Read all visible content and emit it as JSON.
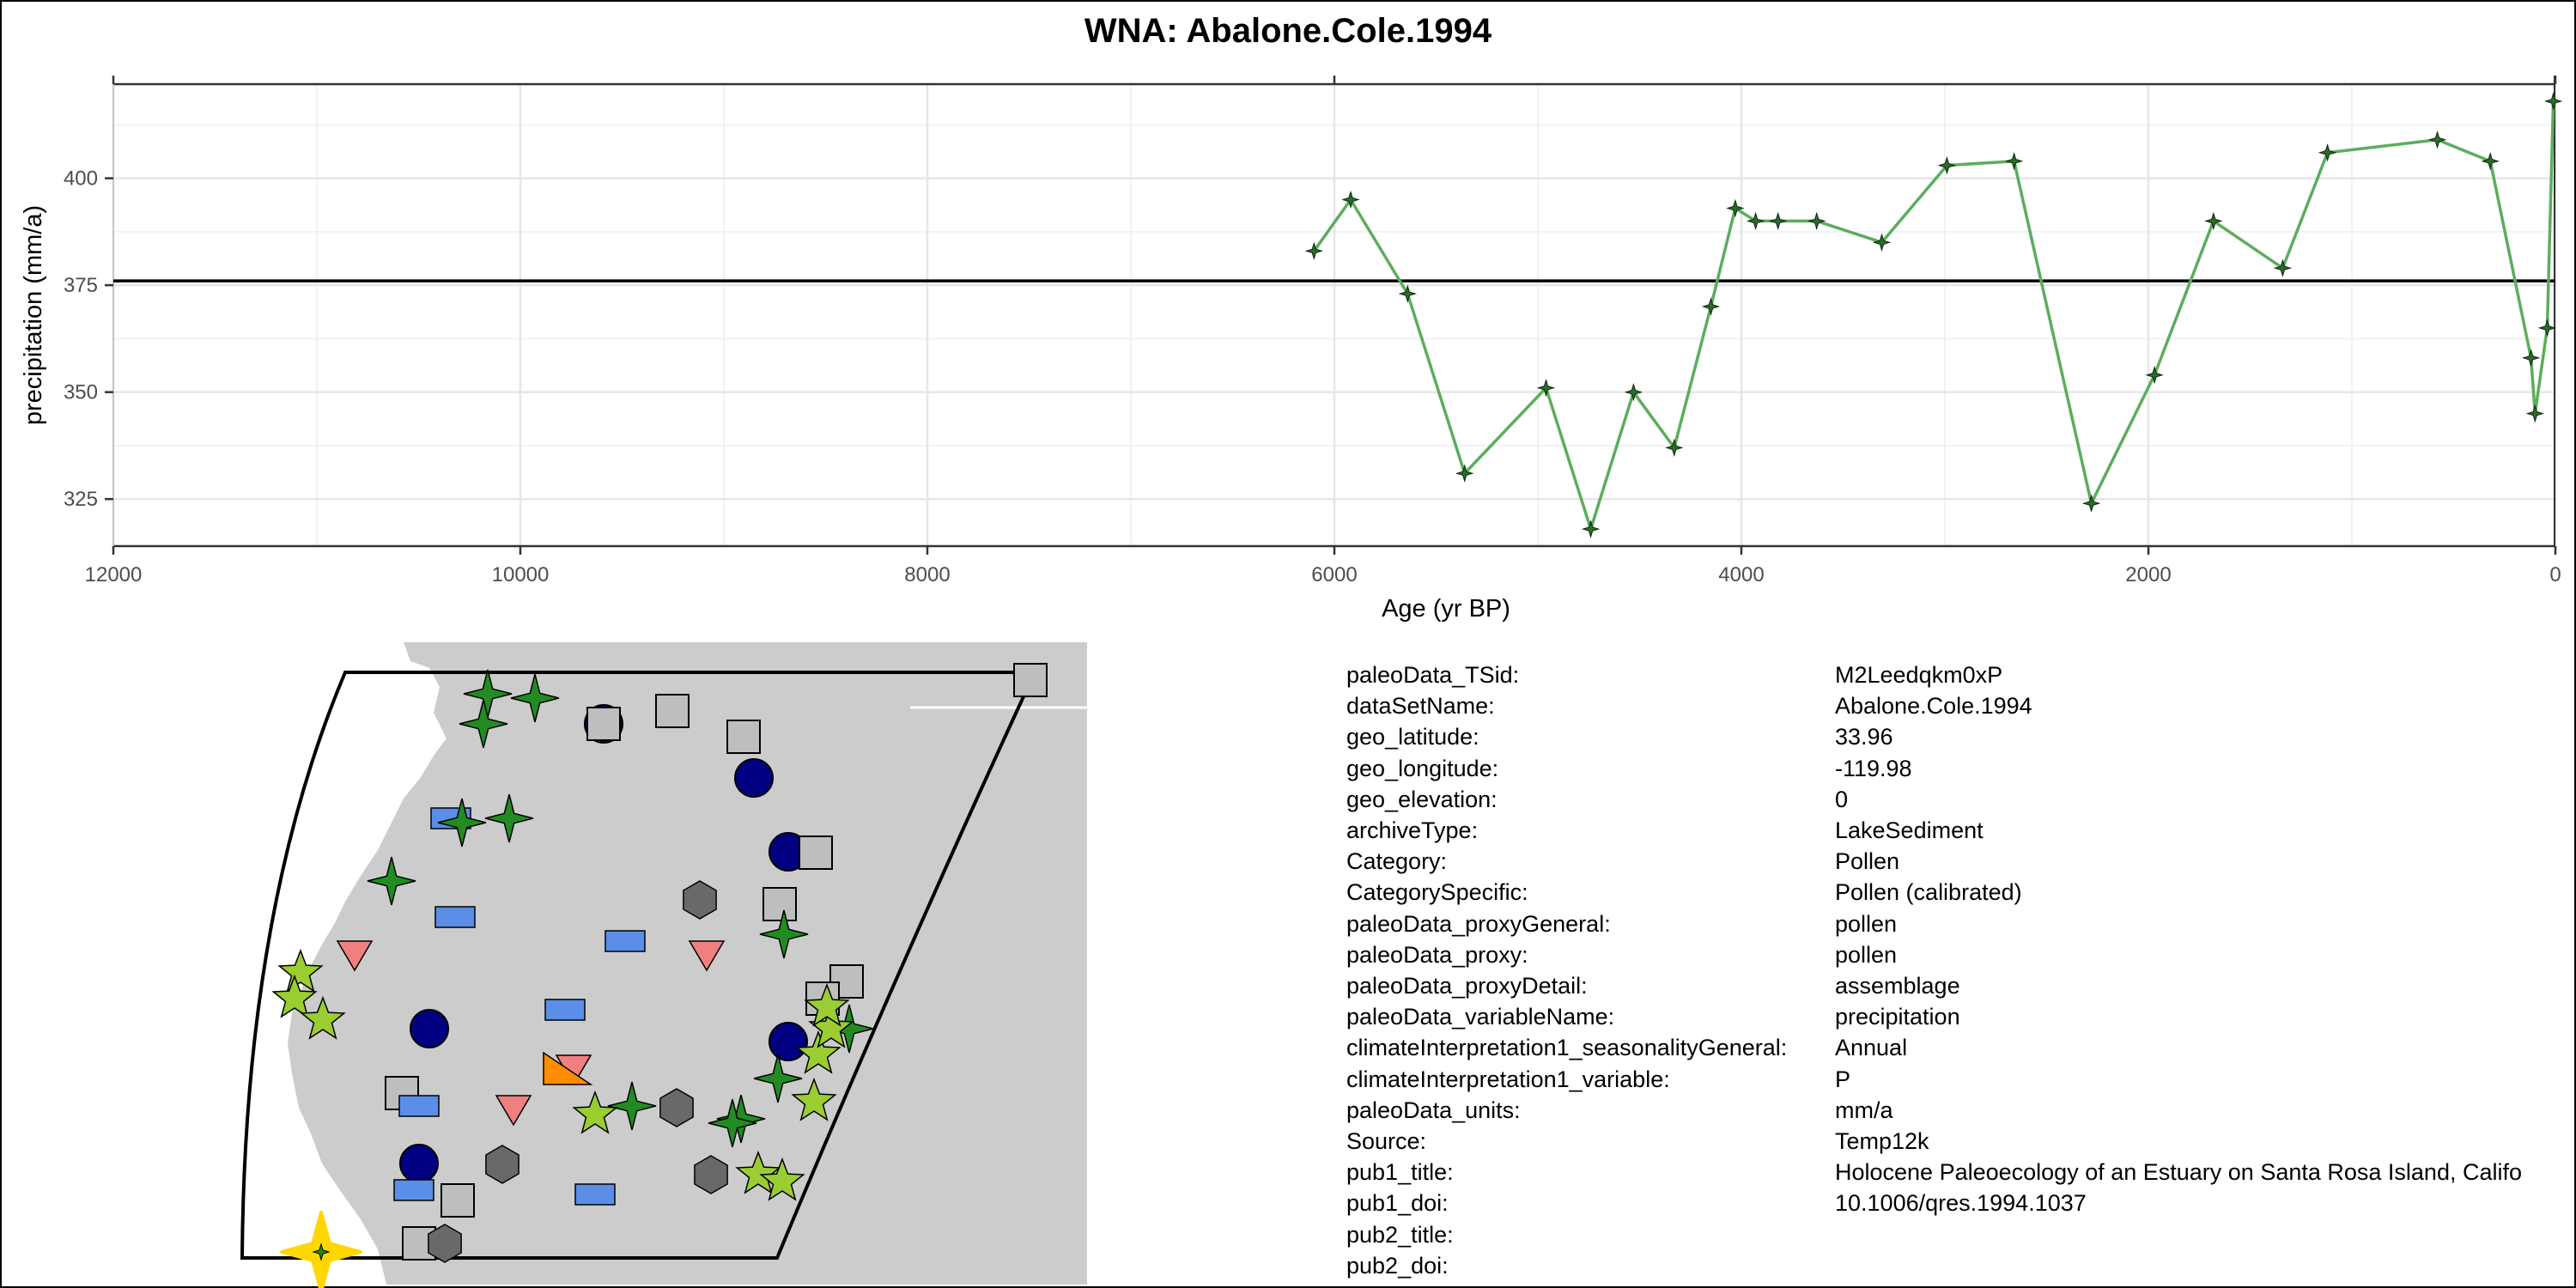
{
  "figure_title": "WNA: Abalone.Cole.1994",
  "colors": {
    "series_line": "#5cad5c",
    "marker": "#2d6a2d",
    "grid_major": "#e6e6e6",
    "grid_minor": "#f2f2f2",
    "map_land": "#cccccc"
  },
  "chart_data": {
    "type": "line",
    "title": "WNA: Abalone.Cole.1994",
    "xlabel": "Age (yr BP)",
    "ylabel": "precipitation (mm/a)",
    "xlim": [
      12000,
      0
    ],
    "ylim": [
      314,
      422
    ],
    "x_ticks": [
      12000,
      10000,
      8000,
      6000,
      4000,
      2000,
      0
    ],
    "y_ticks": [
      325,
      350,
      375,
      400
    ],
    "reference_line": 376,
    "grid": true,
    "series": [
      {
        "name": "precipitation",
        "x": [
          6100,
          5920,
          5640,
          5360,
          4960,
          4740,
          4530,
          4330,
          4150,
          4030,
          3930,
          3820,
          3630,
          3310,
          2990,
          2660,
          2280,
          1970,
          1680,
          1340,
          1120,
          580,
          320,
          120,
          100,
          40,
          10
        ],
        "values": [
          383,
          395,
          373,
          331,
          351,
          318,
          350,
          337,
          370,
          393,
          390,
          390,
          390,
          385,
          403,
          404,
          324,
          354,
          390,
          379,
          406,
          409,
          404,
          358,
          345,
          365,
          418
        ]
      }
    ]
  },
  "map": {
    "legend_shapes": [
      "circle-navy",
      "square-gray",
      "rect-blue",
      "star4-green",
      "star5-lime",
      "hexagon-darkgray",
      "triangle-pink",
      "triangle-orange",
      "site-marker-yellow"
    ]
  },
  "metadata": [
    {
      "key": "paleoData_TSid:",
      "value": "M2Leedqkm0xP"
    },
    {
      "key": "dataSetName:",
      "value": "Abalone.Cole.1994"
    },
    {
      "key": "geo_latitude:",
      "value": "33.96"
    },
    {
      "key": "geo_longitude:",
      "value": "-119.98"
    },
    {
      "key": "geo_elevation:",
      "value": "0"
    },
    {
      "key": "archiveType:",
      "value": "LakeSediment"
    },
    {
      "key": "Category:",
      "value": "Pollen"
    },
    {
      "key": "CategorySpecific:",
      "value": "Pollen (calibrated)"
    },
    {
      "key": "paleoData_proxyGeneral:",
      "value": "pollen"
    },
    {
      "key": "paleoData_proxy:",
      "value": "pollen"
    },
    {
      "key": "paleoData_proxyDetail:",
      "value": "assemblage"
    },
    {
      "key": "paleoData_variableName:",
      "value": "precipitation"
    },
    {
      "key": "climateInterpretation1_seasonalityGeneral:",
      "value": "Annual"
    },
    {
      "key": "climateInterpretation1_variable:",
      "value": "P"
    },
    {
      "key": "paleoData_units:",
      "value": "mm/a"
    },
    {
      "key": "Source:",
      "value": "Temp12k"
    },
    {
      "key": "pub1_title:",
      "value": "Holocene Paleoecology of an Estuary on Santa Rosa Island, Califo"
    },
    {
      "key": "pub1_doi:",
      "value": "10.1006/qres.1994.1037"
    },
    {
      "key": "pub2_title:",
      "value": ""
    },
    {
      "key": "pub2_doi:",
      "value": ""
    }
  ]
}
